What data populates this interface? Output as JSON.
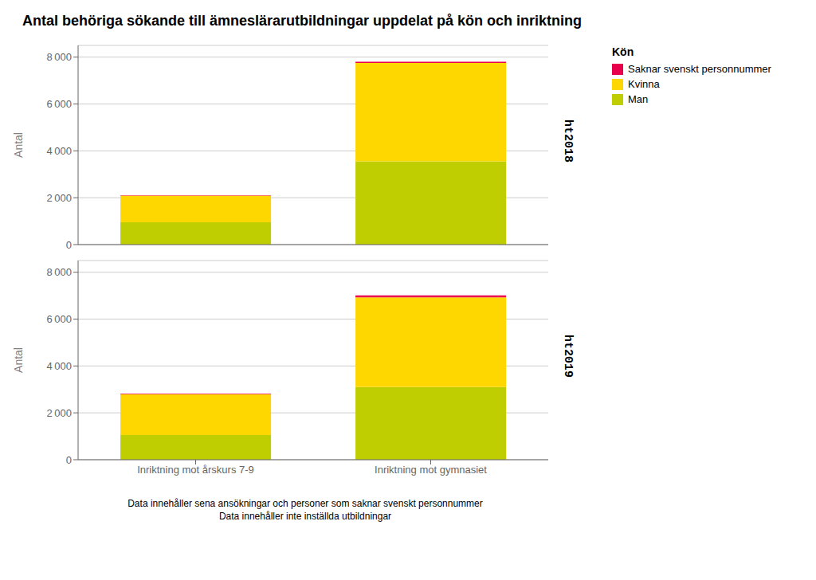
{
  "title": "Antal behöriga sökande till ämneslärarutbildningar uppdelat på kön och inriktning",
  "legend": "upper right",
  "legend_title": "Kön",
  "annotations": [
    "Data innehåller sena ansökningar och personer som saknar svenskt personnummer",
    "Data innehåller inte inställda utbildningar"
  ],
  "chart_data": [
    {
      "type": "bar",
      "stacked": true,
      "subtitle": "ht2018",
      "categories": [
        "Inriktning mot årskurs 7-9",
        "Inriktning mot gymnasiet"
      ],
      "series": [
        {
          "name": "Man",
          "color": "#BFCE00",
          "values": [
            950,
            3550
          ]
        },
        {
          "name": "Kvinna",
          "color": "#FFD700",
          "values": [
            1140,
            4200
          ]
        },
        {
          "name": "Saknar svenskt personnummer",
          "color": "#E8004C",
          "values": [
            15,
            55
          ]
        }
      ],
      "ylabel": "Antal",
      "ylim": [
        0,
        8500
      ],
      "yticks": [
        0,
        {
          "value": 2000,
          "label": "2 000"
        },
        {
          "value": 4000,
          "label": "4 000"
        },
        {
          "value": 6000,
          "label": "6 000"
        },
        {
          "value": 8000,
          "label": "8 000"
        }
      ],
      "grid": true,
      "tick_labels": "y"
    },
    {
      "type": "bar",
      "stacked": true,
      "subtitle": "ht2019",
      "categories": [
        "Inriktning mot årskurs 7-9",
        "Inriktning mot gymnasiet"
      ],
      "series": [
        {
          "name": "Man",
          "color": "#BFCE00",
          "values": [
            1050,
            3100
          ]
        },
        {
          "name": "Kvinna",
          "color": "#FFD700",
          "values": [
            1750,
            3830
          ]
        },
        {
          "name": "Saknar svenskt personnummer",
          "color": "#E8004C",
          "values": [
            20,
            80
          ]
        }
      ],
      "ylabel": "Antal",
      "ylim": [
        0,
        8500
      ],
      "yticks": [
        0,
        {
          "value": 2000,
          "label": "2 000"
        },
        {
          "value": 4000,
          "label": "4 000"
        },
        {
          "value": 6000,
          "label": "6 000"
        },
        {
          "value": 8000,
          "label": "8 000"
        }
      ],
      "grid": true
    }
  ]
}
